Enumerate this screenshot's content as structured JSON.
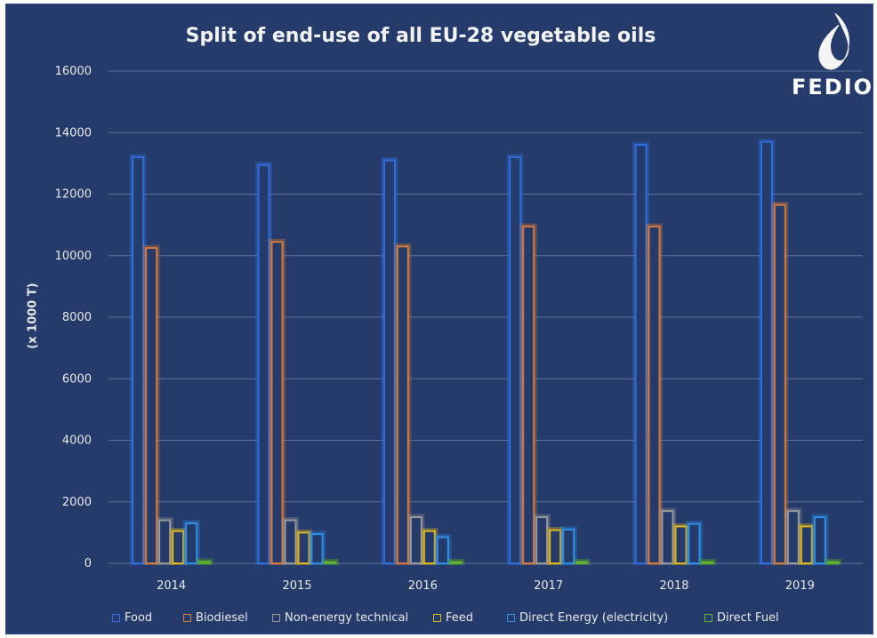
{
  "logo": {
    "word": "FEDIOL",
    "icon": "oil-drop-icon"
  },
  "colors": {
    "background": "#243b6b",
    "grid": "#5d7398",
    "text": "#e9e9e9",
    "food": "#2f6fe0",
    "biodiesel": "#d97a3a",
    "non_energy_technical": "#9a9a9a",
    "feed": "#e1b81b",
    "direct_energy": "#2e8ee8",
    "direct_fuel": "#5caf2f"
  },
  "chart_data": {
    "type": "bar",
    "title": "Split of end-use of all EU-28 vegetable oils",
    "xlabel": "",
    "ylabel": "(x 1000 T)",
    "ylim": [
      0,
      16000
    ],
    "yticks": [
      0,
      2000,
      4000,
      6000,
      8000,
      10000,
      12000,
      14000,
      16000
    ],
    "ytick_labels": [
      "0",
      "2000",
      "4000",
      "6000",
      "8000",
      "10000",
      "12000",
      "14000",
      "16000"
    ],
    "grid": true,
    "legend_position": "bottom",
    "categories": [
      "2014",
      "2015",
      "2016",
      "2017",
      "2018",
      "2019"
    ],
    "series": [
      {
        "name": "Food",
        "color": "#2f6fe0",
        "values": [
          13200,
          12950,
          13100,
          13200,
          13600,
          13700
        ]
      },
      {
        "name": "Biodiesel",
        "color": "#d97a3a",
        "values": [
          10250,
          10450,
          10300,
          10950,
          10950,
          11650
        ]
      },
      {
        "name": "Non-energy technical",
        "color": "#9a9a9a",
        "values": [
          1400,
          1400,
          1500,
          1500,
          1700,
          1700
        ]
      },
      {
        "name": "Feed",
        "color": "#e1b81b",
        "values": [
          1050,
          1000,
          1050,
          1080,
          1200,
          1200
        ]
      },
      {
        "name": "Direct Energy (electricity)",
        "color": "#2e8ee8",
        "values": [
          1300,
          950,
          850,
          1100,
          1280,
          1500
        ]
      },
      {
        "name": "Direct Fuel",
        "color": "#5caf2f",
        "values": [
          60,
          50,
          50,
          50,
          50,
          50
        ]
      }
    ]
  }
}
